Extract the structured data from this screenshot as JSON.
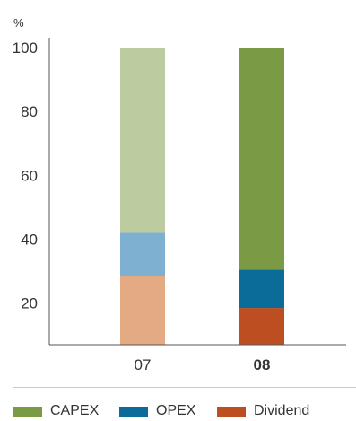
{
  "chart_data": {
    "type": "bar",
    "stacked": true,
    "unit_label": "%",
    "categories": [
      "07",
      "08"
    ],
    "category_bold": [
      false,
      true
    ],
    "ylim": [
      7,
      100
    ],
    "yticks": [
      100,
      80,
      60,
      40,
      20
    ],
    "series": [
      {
        "name": "CAPEX",
        "values": [
          65.0,
          76.5
        ],
        "colors": [
          "#bccca0",
          "#7a9a45"
        ]
      },
      {
        "name": "OPEX",
        "values": [
          13.5,
          12.0
        ],
        "colors": [
          "#7eb1d1",
          "#0c6c99"
        ]
      },
      {
        "name": "Dividend",
        "values": [
          21.5,
          11.5
        ],
        "colors": [
          "#e3aa84",
          "#bd4e21"
        ]
      }
    ],
    "legend_position": "bottom",
    "grid": false
  }
}
